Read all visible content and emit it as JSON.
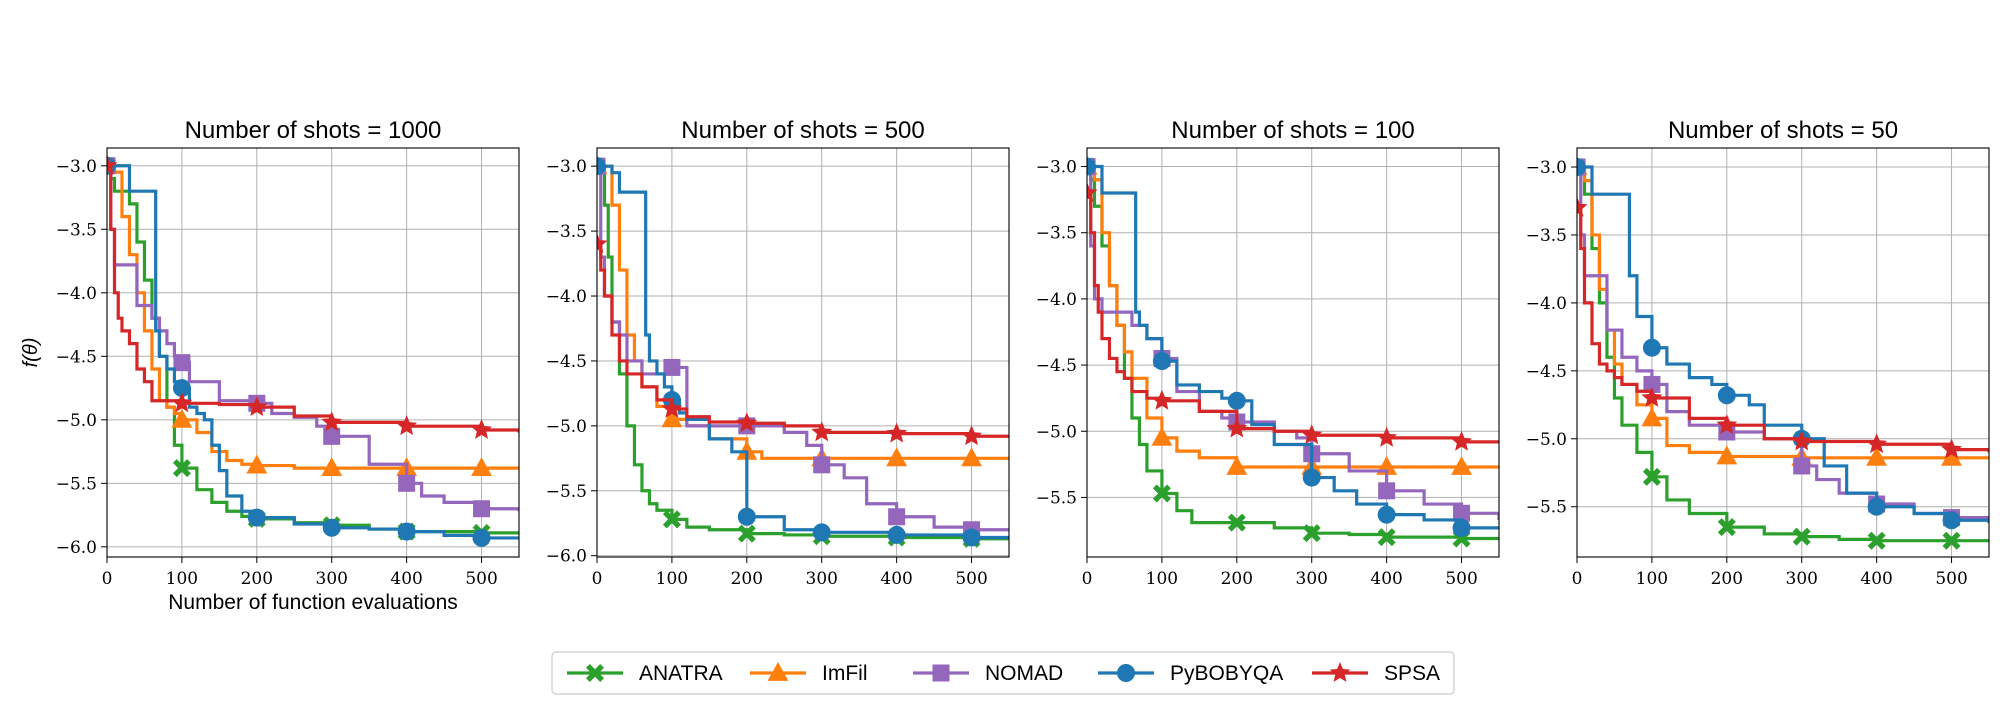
{
  "legend_position": "bottom-center",
  "colors": {
    "ANATRA": "#2ca02c",
    "ImFil": "#ff7f0e",
    "NOMAD": "#9467bd",
    "PyBOBYQA": "#1f77b4",
    "SPSA": "#d62728"
  },
  "markers": {
    "ANATRA": "X",
    "ImFil": "triangle",
    "NOMAD": "square",
    "PyBOBYQA": "circle",
    "SPSA": "star"
  },
  "chart_data": [
    {
      "type": "line",
      "title": "Number of shots = 1000",
      "xlabel": "Number of function evaluations",
      "ylabel": "f(θ)",
      "xlim": [
        0,
        550
      ],
      "ylim": [
        -6.08,
        -2.86
      ],
      "xticks": [
        0,
        100,
        200,
        300,
        400,
        500
      ],
      "yticks": [
        -3.0,
        -3.5,
        -4.0,
        -4.5,
        -5.0,
        -5.5,
        -6.0
      ],
      "ytick_labels": [
        "−3.0",
        "−3.5",
        "−4.0",
        "−4.5",
        "−5.0",
        "−5.5",
        "−6.0"
      ],
      "grid": true,
      "series": [
        {
          "name": "ANATRA",
          "x": [
            0,
            5,
            10,
            20,
            30,
            40,
            50,
            60,
            70,
            80,
            90,
            100,
            120,
            140,
            160,
            180,
            200,
            250,
            300,
            350,
            400,
            450,
            500,
            550
          ],
          "y": [
            -3.0,
            -3.1,
            -3.2,
            -3.2,
            -3.3,
            -3.6,
            -3.9,
            -4.2,
            -4.5,
            -4.9,
            -5.2,
            -5.38,
            -5.55,
            -5.65,
            -5.72,
            -5.76,
            -5.78,
            -5.81,
            -5.83,
            -5.86,
            -5.88,
            -5.88,
            -5.89,
            -5.89
          ]
        },
        {
          "name": "ImFil",
          "x": [
            0,
            5,
            10,
            20,
            30,
            40,
            50,
            60,
            70,
            80,
            90,
            100,
            120,
            140,
            160,
            180,
            200,
            250,
            300,
            400,
            500,
            550
          ],
          "y": [
            -3.0,
            -3.0,
            -3.05,
            -3.4,
            -3.7,
            -4.0,
            -4.3,
            -4.6,
            -4.85,
            -4.9,
            -4.95,
            -5.0,
            -5.1,
            -5.25,
            -5.32,
            -5.35,
            -5.36,
            -5.38,
            -5.38,
            -5.38,
            -5.38,
            -5.38
          ]
        },
        {
          "name": "NOMAD",
          "x": [
            0,
            5,
            10,
            30,
            40,
            60,
            70,
            80,
            90,
            100,
            110,
            150,
            200,
            220,
            250,
            280,
            300,
            350,
            400,
            420,
            450,
            500,
            550
          ],
          "y": [
            -3.0,
            -3.5,
            -3.78,
            -3.78,
            -4.1,
            -4.2,
            -4.3,
            -4.4,
            -4.5,
            -4.55,
            -4.7,
            -4.85,
            -4.87,
            -4.95,
            -4.98,
            -5.05,
            -5.13,
            -5.35,
            -5.5,
            -5.6,
            -5.65,
            -5.7,
            -5.72
          ]
        },
        {
          "name": "PyBOBYQA",
          "x": [
            0,
            5,
            10,
            20,
            30,
            40,
            60,
            65,
            70,
            80,
            90,
            100,
            110,
            120,
            130,
            140,
            150,
            160,
            180,
            200,
            250,
            300,
            350,
            400,
            450,
            500,
            550
          ],
          "y": [
            -3.0,
            -3.0,
            -3.0,
            -3.0,
            -3.2,
            -3.2,
            -3.2,
            -4.3,
            -4.5,
            -4.6,
            -4.7,
            -4.75,
            -4.9,
            -4.95,
            -5.0,
            -5.2,
            -5.4,
            -5.6,
            -5.72,
            -5.77,
            -5.82,
            -5.85,
            -5.86,
            -5.88,
            -5.91,
            -5.93,
            -5.93
          ]
        },
        {
          "name": "SPSA",
          "x": [
            0,
            5,
            10,
            15,
            20,
            30,
            40,
            50,
            60,
            70,
            80,
            100,
            150,
            200,
            250,
            300,
            400,
            500,
            550
          ],
          "y": [
            -3.0,
            -3.5,
            -4.0,
            -4.2,
            -4.3,
            -4.4,
            -4.6,
            -4.7,
            -4.85,
            -4.85,
            -4.85,
            -4.87,
            -4.88,
            -4.9,
            -4.97,
            -5.02,
            -5.05,
            -5.08,
            -5.1
          ]
        }
      ]
    },
    {
      "type": "line",
      "title": "Number of shots = 500",
      "xlabel": "",
      "ylabel": "",
      "xlim": [
        0,
        550
      ],
      "ylim": [
        -6.01,
        -2.86
      ],
      "xticks": [
        0,
        100,
        200,
        300,
        400,
        500
      ],
      "yticks": [
        -3.0,
        -3.5,
        -4.0,
        -4.5,
        -5.0,
        -5.5,
        -6.0
      ],
      "ytick_labels": [
        "−3.0",
        "−3.5",
        "−4.0",
        "−4.5",
        "−5.0",
        "−5.5",
        "−6.0"
      ],
      "grid": true,
      "series": [
        {
          "name": "ANATRA",
          "x": [
            0,
            5,
            10,
            15,
            20,
            30,
            40,
            50,
            60,
            70,
            80,
            100,
            120,
            150,
            200,
            250,
            300,
            400,
            500,
            550
          ],
          "y": [
            -3.0,
            -3.0,
            -3.3,
            -3.7,
            -4.2,
            -4.6,
            -5.0,
            -5.3,
            -5.5,
            -5.6,
            -5.65,
            -5.72,
            -5.78,
            -5.8,
            -5.83,
            -5.84,
            -5.85,
            -5.86,
            -5.87,
            -5.87
          ]
        },
        {
          "name": "ImFil",
          "x": [
            0,
            5,
            10,
            20,
            30,
            40,
            50,
            60,
            80,
            100,
            120,
            150,
            200,
            220,
            300,
            400,
            500,
            550
          ],
          "y": [
            -3.0,
            -3.0,
            -3.0,
            -3.3,
            -3.8,
            -4.3,
            -4.5,
            -4.7,
            -4.85,
            -4.95,
            -5.0,
            -5.1,
            -5.2,
            -5.25,
            -5.25,
            -5.25,
            -5.25,
            -5.25
          ]
        },
        {
          "name": "NOMAD",
          "x": [
            0,
            5,
            10,
            20,
            30,
            40,
            60,
            80,
            100,
            120,
            150,
            200,
            250,
            280,
            300,
            330,
            360,
            400,
            450,
            500,
            550
          ],
          "y": [
            -3.0,
            -3.7,
            -4.0,
            -4.2,
            -4.3,
            -4.5,
            -4.6,
            -4.6,
            -4.55,
            -5.0,
            -5.0,
            -5.0,
            -5.05,
            -5.15,
            -5.3,
            -5.4,
            -5.6,
            -5.7,
            -5.78,
            -5.8,
            -5.81
          ]
        },
        {
          "name": "PyBOBYQA",
          "x": [
            0,
            5,
            10,
            20,
            30,
            40,
            50,
            60,
            65,
            70,
            80,
            90,
            100,
            110,
            120,
            150,
            180,
            200,
            250,
            300,
            400,
            500,
            550
          ],
          "y": [
            -3.0,
            -3.0,
            -3.0,
            -3.05,
            -3.2,
            -3.2,
            -3.2,
            -3.2,
            -4.3,
            -4.5,
            -4.6,
            -4.7,
            -4.8,
            -4.9,
            -4.95,
            -5.1,
            -5.2,
            -5.7,
            -5.8,
            -5.82,
            -5.84,
            -5.86,
            -5.86
          ]
        },
        {
          "name": "SPSA",
          "x": [
            0,
            5,
            10,
            20,
            30,
            40,
            60,
            80,
            100,
            120,
            150,
            200,
            250,
            300,
            400,
            500,
            550
          ],
          "y": [
            -3.6,
            -3.8,
            -4.0,
            -4.3,
            -4.5,
            -4.6,
            -4.7,
            -4.8,
            -4.87,
            -4.93,
            -4.97,
            -4.98,
            -5.0,
            -5.05,
            -5.06,
            -5.08,
            -5.08
          ]
        }
      ]
    },
    {
      "type": "line",
      "title": "Number of shots = 100",
      "xlabel": "",
      "ylabel": "",
      "xlim": [
        0,
        550
      ],
      "ylim": [
        -5.95,
        -2.86
      ],
      "xticks": [
        0,
        100,
        200,
        300,
        400,
        500
      ],
      "yticks": [
        -3.0,
        -3.5,
        -4.0,
        -4.5,
        -5.0,
        -5.5
      ],
      "ytick_labels": [
        "−3.0",
        "−3.5",
        "−4.0",
        "−4.5",
        "−5.0",
        "−5.5"
      ],
      "grid": true,
      "series": [
        {
          "name": "ANATRA",
          "x": [
            0,
            5,
            10,
            20,
            30,
            40,
            50,
            60,
            70,
            80,
            100,
            120,
            140,
            200,
            250,
            300,
            350,
            400,
            500,
            550
          ],
          "y": [
            -3.0,
            -3.1,
            -3.3,
            -3.6,
            -3.9,
            -4.2,
            -4.6,
            -4.9,
            -5.1,
            -5.3,
            -5.47,
            -5.6,
            -5.69,
            -5.69,
            -5.73,
            -5.77,
            -5.78,
            -5.8,
            -5.81,
            -5.81
          ]
        },
        {
          "name": "ImFil",
          "x": [
            0,
            5,
            10,
            20,
            30,
            40,
            50,
            60,
            80,
            100,
            120,
            150,
            200,
            300,
            400,
            500,
            550
          ],
          "y": [
            -3.0,
            -3.0,
            -3.1,
            -3.5,
            -3.9,
            -4.2,
            -4.4,
            -4.6,
            -4.9,
            -5.05,
            -5.15,
            -5.2,
            -5.27,
            -5.27,
            -5.27,
            -5.27,
            -5.27
          ]
        },
        {
          "name": "NOMAD",
          "x": [
            0,
            5,
            10,
            20,
            40,
            60,
            80,
            100,
            120,
            150,
            180,
            200,
            250,
            280,
            300,
            350,
            400,
            450,
            500,
            550
          ],
          "y": [
            -3.0,
            -3.6,
            -4.0,
            -4.1,
            -4.1,
            -4.2,
            -4.3,
            -4.45,
            -4.7,
            -4.85,
            -4.9,
            -4.93,
            -5.0,
            -5.05,
            -5.17,
            -5.3,
            -5.45,
            -5.55,
            -5.62,
            -5.67
          ]
        },
        {
          "name": "PyBOBYQA",
          "x": [
            0,
            5,
            10,
            20,
            30,
            40,
            60,
            65,
            70,
            80,
            100,
            120,
            150,
            180,
            200,
            220,
            250,
            300,
            330,
            360,
            400,
            450,
            500,
            550
          ],
          "y": [
            -3.0,
            -3.0,
            -3.0,
            -3.2,
            -3.2,
            -3.2,
            -3.2,
            -4.1,
            -4.2,
            -4.3,
            -4.47,
            -4.65,
            -4.7,
            -4.75,
            -4.77,
            -4.95,
            -5.1,
            -5.35,
            -5.45,
            -5.55,
            -5.63,
            -5.67,
            -5.73,
            -5.73
          ]
        },
        {
          "name": "SPSA",
          "x": [
            0,
            5,
            10,
            15,
            20,
            30,
            40,
            50,
            60,
            80,
            100,
            150,
            200,
            250,
            300,
            400,
            500,
            550
          ],
          "y": [
            -3.2,
            -3.5,
            -3.9,
            -4.1,
            -4.3,
            -4.45,
            -4.55,
            -4.6,
            -4.7,
            -4.75,
            -4.77,
            -4.85,
            -4.98,
            -5.0,
            -5.03,
            -5.05,
            -5.08,
            -5.09
          ]
        }
      ]
    },
    {
      "type": "line",
      "title": "Number of shots = 50",
      "xlabel": "",
      "ylabel": "",
      "xlim": [
        0,
        550
      ],
      "ylim": [
        -5.87,
        -2.86
      ],
      "xticks": [
        0,
        100,
        200,
        300,
        400,
        500
      ],
      "yticks": [
        -3.0,
        -3.5,
        -4.0,
        -4.5,
        -5.0,
        -5.5
      ],
      "ytick_labels": [
        "−3.0",
        "−3.5",
        "−4.0",
        "−4.5",
        "−5.0",
        "−5.5"
      ],
      "grid": true,
      "series": [
        {
          "name": "ANATRA",
          "x": [
            0,
            5,
            10,
            20,
            30,
            40,
            50,
            60,
            80,
            100,
            120,
            150,
            200,
            250,
            300,
            350,
            400,
            500,
            550
          ],
          "y": [
            -3.0,
            -3.0,
            -3.2,
            -3.6,
            -4.0,
            -4.4,
            -4.7,
            -4.9,
            -5.1,
            -5.28,
            -5.45,
            -5.55,
            -5.65,
            -5.7,
            -5.72,
            -5.74,
            -5.75,
            -5.75,
            -5.75
          ]
        },
        {
          "name": "ImFil",
          "x": [
            0,
            5,
            10,
            20,
            30,
            40,
            50,
            60,
            80,
            100,
            120,
            150,
            200,
            300,
            400,
            500,
            550
          ],
          "y": [
            -3.0,
            -3.0,
            -3.1,
            -3.5,
            -3.9,
            -4.2,
            -4.45,
            -4.6,
            -4.75,
            -4.85,
            -5.05,
            -5.1,
            -5.13,
            -5.14,
            -5.14,
            -5.14,
            -5.14
          ]
        },
        {
          "name": "NOMAD",
          "x": [
            0,
            5,
            10,
            20,
            40,
            60,
            80,
            100,
            120,
            150,
            200,
            250,
            300,
            320,
            350,
            400,
            450,
            500,
            550
          ],
          "y": [
            -3.0,
            -3.5,
            -3.8,
            -3.8,
            -4.2,
            -4.4,
            -4.5,
            -4.6,
            -4.8,
            -4.9,
            -4.95,
            -5.0,
            -5.2,
            -5.3,
            -5.4,
            -5.48,
            -5.55,
            -5.58,
            -5.6
          ]
        },
        {
          "name": "PyBOBYQA",
          "x": [
            0,
            5,
            10,
            20,
            30,
            40,
            60,
            70,
            80,
            100,
            120,
            150,
            180,
            200,
            230,
            250,
            300,
            330,
            360,
            400,
            450,
            500,
            550
          ],
          "y": [
            -3.0,
            -3.0,
            -3.0,
            -3.2,
            -3.2,
            -3.2,
            -3.2,
            -3.8,
            -4.1,
            -4.33,
            -4.45,
            -4.55,
            -4.6,
            -4.68,
            -4.75,
            -4.9,
            -5.0,
            -5.2,
            -5.4,
            -5.5,
            -5.55,
            -5.6,
            -5.62
          ]
        },
        {
          "name": "SPSA",
          "x": [
            0,
            5,
            10,
            20,
            30,
            40,
            50,
            60,
            80,
            100,
            150,
            200,
            250,
            300,
            400,
            500,
            550
          ],
          "y": [
            -3.3,
            -3.6,
            -4.0,
            -4.3,
            -4.45,
            -4.5,
            -4.55,
            -4.6,
            -4.65,
            -4.7,
            -4.85,
            -4.9,
            -5.0,
            -5.02,
            -5.04,
            -5.08,
            -5.1
          ]
        }
      ]
    }
  ]
}
